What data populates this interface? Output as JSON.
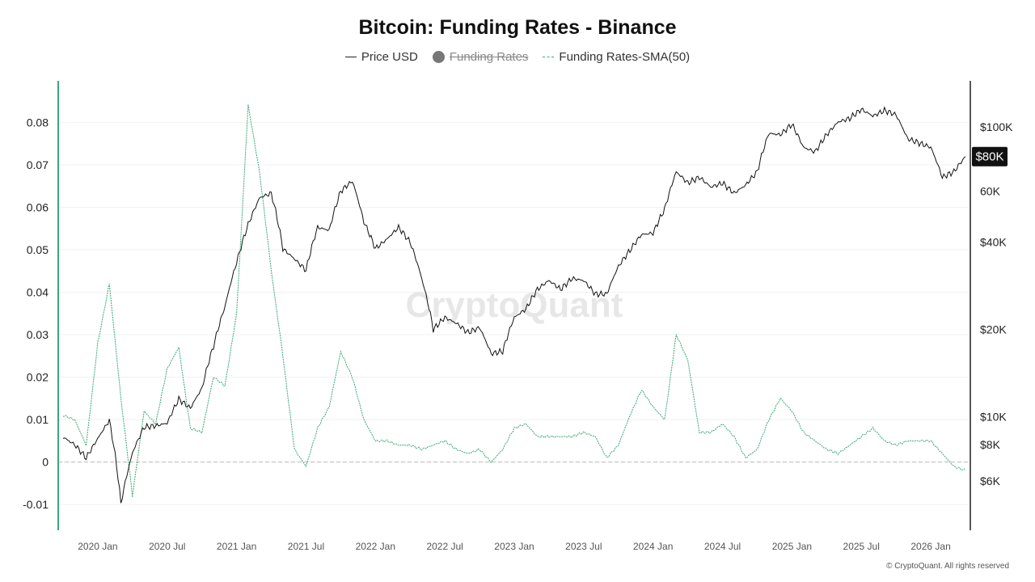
{
  "title": "Bitcoin: Funding Rates - Binance",
  "legend": {
    "price": "Price USD",
    "funding": "Funding Rates",
    "sma": "Funding Rates-SMA(50)"
  },
  "watermark": "CryptoQuant",
  "footer": "© CryptoQuant. All rights reserved",
  "price_tag": "$80K",
  "colors": {
    "price": "#111111",
    "sma": "#3aa876",
    "axis_left": "#3aa876",
    "tag_bg": "#111111"
  },
  "chart_data": {
    "type": "line",
    "title": "Bitcoin: Funding Rates - Binance",
    "x_ticks": [
      "2020 Jan",
      "2020 Jul",
      "2021 Jan",
      "2021 Jul",
      "2022 Jan",
      "2022 Jul",
      "2023 Jan",
      "2023 Jul",
      "2024 Jan",
      "2024 Jul",
      "2025 Jan",
      "2025 Jul",
      "2026 Jan"
    ],
    "x_range": [
      "2019-10",
      "2026-04"
    ],
    "y_left": {
      "ticks": [
        "0.08",
        "0.07",
        "0.06",
        "0.05",
        "0.04",
        "0.03",
        "0.02",
        "0.01",
        "0",
        "-0.01"
      ],
      "range": [
        -0.013,
        0.085
      ]
    },
    "y_right": {
      "scale": "log",
      "ticks": [
        "$100K",
        "$80K",
        "60K",
        "$40K",
        "$20K",
        "$10K",
        "$8K",
        "$6K"
      ],
      "tick_values": [
        100000,
        80000,
        60000,
        40000,
        20000,
        10000,
        8000,
        6000
      ]
    },
    "series": [
      {
        "name": "Price USD",
        "axis": "right",
        "points": [
          [
            "2019-10",
            8500
          ],
          [
            "2019-11",
            8000
          ],
          [
            "2019-12",
            7200
          ],
          [
            "2020-01",
            8400
          ],
          [
            "2020-02",
            9700
          ],
          [
            "2020-03",
            5000
          ],
          [
            "2020-04",
            7500
          ],
          [
            "2020-05",
            9200
          ],
          [
            "2020-06",
            9300
          ],
          [
            "2020-07",
            9500
          ],
          [
            "2020-08",
            11500
          ],
          [
            "2020-09",
            10700
          ],
          [
            "2020-10",
            12500
          ],
          [
            "2020-11",
            17500
          ],
          [
            "2020-12",
            24000
          ],
          [
            "2021-01",
            34000
          ],
          [
            "2021-02",
            46000
          ],
          [
            "2021-03",
            57000
          ],
          [
            "2021-04",
            59000
          ],
          [
            "2021-05",
            38000
          ],
          [
            "2021-06",
            35000
          ],
          [
            "2021-07",
            32000
          ],
          [
            "2021-08",
            45000
          ],
          [
            "2021-09",
            44000
          ],
          [
            "2021-10",
            60000
          ],
          [
            "2021-11",
            65000
          ],
          [
            "2021-12",
            47000
          ],
          [
            "2022-01",
            38000
          ],
          [
            "2022-02",
            41000
          ],
          [
            "2022-03",
            45000
          ],
          [
            "2022-04",
            40000
          ],
          [
            "2022-05",
            30000
          ],
          [
            "2022-06",
            20000
          ],
          [
            "2022-07",
            22000
          ],
          [
            "2022-08",
            21000
          ],
          [
            "2022-09",
            19500
          ],
          [
            "2022-10",
            20300
          ],
          [
            "2022-11",
            16500
          ],
          [
            "2022-12",
            16800
          ],
          [
            "2023-01",
            22000
          ],
          [
            "2023-02",
            23500
          ],
          [
            "2023-03",
            27500
          ],
          [
            "2023-04",
            29500
          ],
          [
            "2023-05",
            27500
          ],
          [
            "2023-06",
            30000
          ],
          [
            "2023-07",
            29500
          ],
          [
            "2023-08",
            26500
          ],
          [
            "2023-09",
            26500
          ],
          [
            "2023-10",
            33000
          ],
          [
            "2023-11",
            37500
          ],
          [
            "2023-12",
            42500
          ],
          [
            "2024-01",
            43000
          ],
          [
            "2024-02",
            52000
          ],
          [
            "2024-03",
            70000
          ],
          [
            "2024-04",
            64000
          ],
          [
            "2024-05",
            67000
          ],
          [
            "2024-06",
            62000
          ],
          [
            "2024-07",
            64000
          ],
          [
            "2024-08",
            59000
          ],
          [
            "2024-09",
            63000
          ],
          [
            "2024-10",
            70000
          ],
          [
            "2024-11",
            95000
          ],
          [
            "2024-12",
            94000
          ],
          [
            "2025-01",
            102000
          ],
          [
            "2025-02",
            85000
          ],
          [
            "2025-03",
            82000
          ],
          [
            "2025-04",
            94000
          ],
          [
            "2025-05",
            104000
          ],
          [
            "2025-06",
            107000
          ],
          [
            "2025-07",
            115000
          ],
          [
            "2025-08",
            109000
          ],
          [
            "2025-09",
            114000
          ],
          [
            "2025-10",
            110000
          ],
          [
            "2025-11",
            91000
          ],
          [
            "2025-12",
            88000
          ],
          [
            "2026-01",
            85000
          ],
          [
            "2026-02",
            67000
          ],
          [
            "2026-03",
            70000
          ],
          [
            "2026-04",
            79000
          ]
        ]
      },
      {
        "name": "Funding Rates-SMA(50)",
        "axis": "left",
        "points": [
          [
            "2019-10",
            0.011
          ],
          [
            "2019-11",
            0.01
          ],
          [
            "2019-12",
            0.004
          ],
          [
            "2020-01",
            0.028
          ],
          [
            "2020-02",
            0.042
          ],
          [
            "2020-03",
            0.015
          ],
          [
            "2020-04",
            -0.008
          ],
          [
            "2020-05",
            0.012
          ],
          [
            "2020-06",
            0.009
          ],
          [
            "2020-07",
            0.022
          ],
          [
            "2020-08",
            0.027
          ],
          [
            "2020-09",
            0.008
          ],
          [
            "2020-10",
            0.007
          ],
          [
            "2020-11",
            0.02
          ],
          [
            "2020-12",
            0.018
          ],
          [
            "2021-01",
            0.035
          ],
          [
            "2021-02",
            0.084
          ],
          [
            "2021-03",
            0.068
          ],
          [
            "2021-04",
            0.045
          ],
          [
            "2021-05",
            0.025
          ],
          [
            "2021-06",
            0.003
          ],
          [
            "2021-07",
            -0.001
          ],
          [
            "2021-08",
            0.008
          ],
          [
            "2021-09",
            0.013
          ],
          [
            "2021-10",
            0.026
          ],
          [
            "2021-11",
            0.02
          ],
          [
            "2021-12",
            0.01
          ],
          [
            "2022-01",
            0.005
          ],
          [
            "2022-02",
            0.005
          ],
          [
            "2022-03",
            0.004
          ],
          [
            "2022-04",
            0.004
          ],
          [
            "2022-05",
            0.003
          ],
          [
            "2022-06",
            0.004
          ],
          [
            "2022-07",
            0.005
          ],
          [
            "2022-08",
            0.003
          ],
          [
            "2022-09",
            0.002
          ],
          [
            "2022-10",
            0.003
          ],
          [
            "2022-11",
            0.0
          ],
          [
            "2022-12",
            0.003
          ],
          [
            "2023-01",
            0.008
          ],
          [
            "2023-02",
            0.009
          ],
          [
            "2023-03",
            0.006
          ],
          [
            "2023-04",
            0.006
          ],
          [
            "2023-05",
            0.006
          ],
          [
            "2023-06",
            0.006
          ],
          [
            "2023-07",
            0.007
          ],
          [
            "2023-08",
            0.006
          ],
          [
            "2023-09",
            0.001
          ],
          [
            "2023-10",
            0.004
          ],
          [
            "2023-11",
            0.011
          ],
          [
            "2023-12",
            0.017
          ],
          [
            "2024-01",
            0.013
          ],
          [
            "2024-02",
            0.01
          ],
          [
            "2024-03",
            0.03
          ],
          [
            "2024-04",
            0.024
          ],
          [
            "2024-05",
            0.007
          ],
          [
            "2024-06",
            0.007
          ],
          [
            "2024-07",
            0.009
          ],
          [
            "2024-08",
            0.006
          ],
          [
            "2024-09",
            0.001
          ],
          [
            "2024-10",
            0.003
          ],
          [
            "2024-11",
            0.01
          ],
          [
            "2024-12",
            0.015
          ],
          [
            "2025-01",
            0.012
          ],
          [
            "2025-02",
            0.007
          ],
          [
            "2025-03",
            0.005
          ],
          [
            "2025-04",
            0.003
          ],
          [
            "2025-05",
            0.002
          ],
          [
            "2025-06",
            0.004
          ],
          [
            "2025-07",
            0.006
          ],
          [
            "2025-08",
            0.008
          ],
          [
            "2025-09",
            0.005
          ],
          [
            "2025-10",
            0.004
          ],
          [
            "2025-11",
            0.005
          ],
          [
            "2025-12",
            0.005
          ],
          [
            "2026-01",
            0.005
          ],
          [
            "2026-02",
            0.002
          ],
          [
            "2026-03",
            -0.001
          ],
          [
            "2026-04",
            -0.002
          ]
        ]
      }
    ],
    "hidden_series": [
      "Funding Rates"
    ],
    "grid": true,
    "zero_line": "dashed",
    "legend_position": "top-center"
  }
}
